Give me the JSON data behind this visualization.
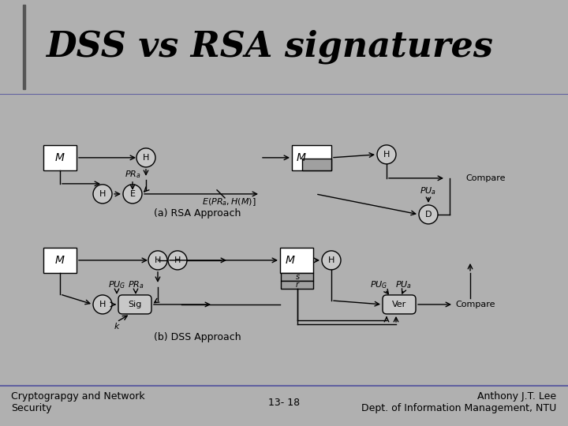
{
  "title": "DSS vs RSA signatures",
  "title_fontsize": 32,
  "title_color": "#000000",
  "bg_color": "#b0b0b0",
  "slide_bg": "#c8c8c8",
  "content_bg": "#f0f0f0",
  "footer_left": "Cryptograpgy and Network\nSecurity",
  "footer_center": "13- 18",
  "footer_right": "Anthony J.T. Lee\nDept. of Information Management, NTU",
  "footer_fontsize": 9,
  "label_rsa": "(a) RSA Approach",
  "label_dss": "(b) DSS Approach",
  "box_fill": "#ffffff",
  "circle_fill": "#c0c0c0",
  "dark_fill": "#a0a0a0",
  "arrow_color": "#000000",
  "line_color": "#000000",
  "text_color": "#000000",
  "border_color": "#6060a0"
}
